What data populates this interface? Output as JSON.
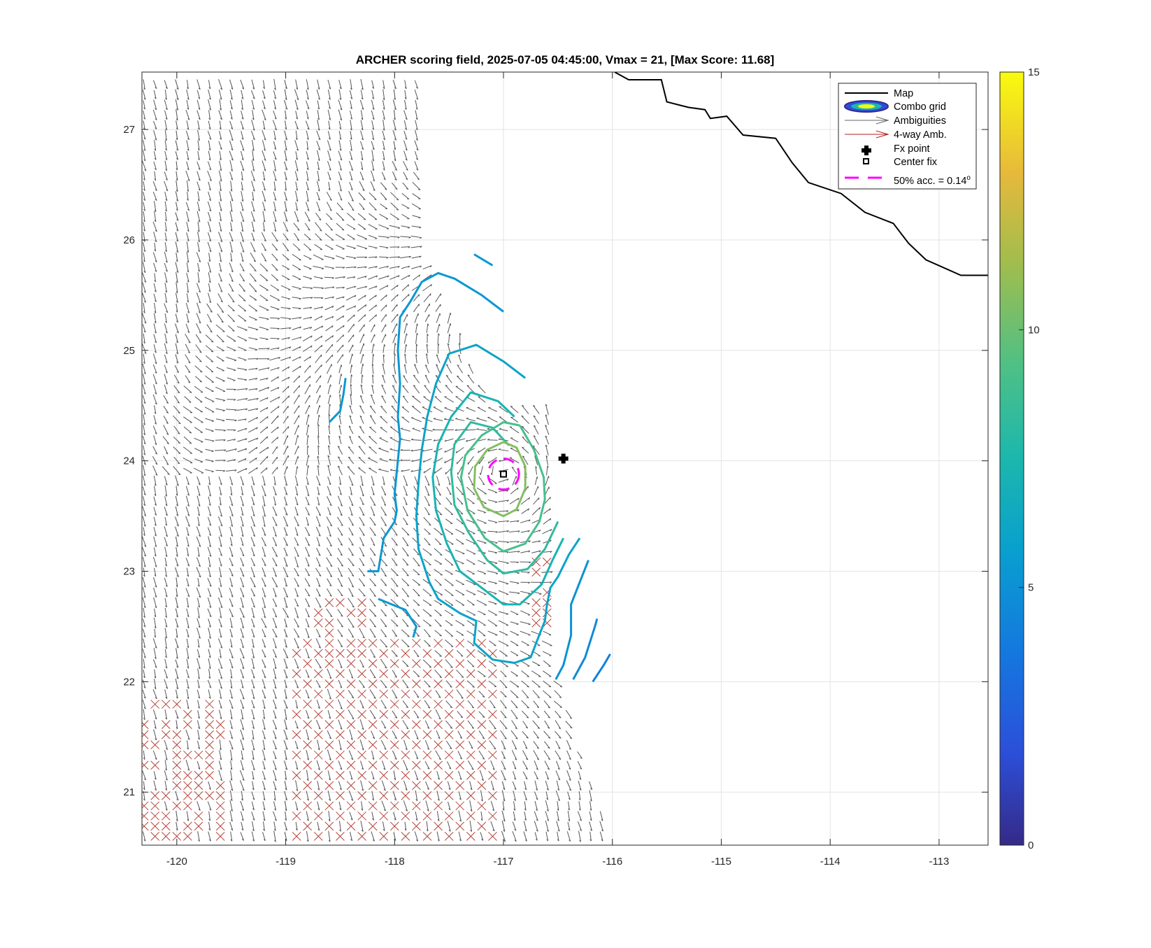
{
  "chart_data": {
    "type": "contour",
    "title": "ARCHER scoring field, 2025-07-05 04:45:00, Vmax = 21, [Max Score: 11.68]",
    "xlabel": "",
    "ylabel": "",
    "xlim": [
      -120.32,
      -112.55
    ],
    "ylim": [
      20.52,
      27.52
    ],
    "x_ticks": [
      "-120",
      "-119",
      "-118",
      "-117",
      "-116",
      "-115",
      "-114",
      "-113"
    ],
    "y_ticks": [
      "21",
      "22",
      "23",
      "24",
      "25",
      "26",
      "27"
    ],
    "grid": true,
    "colorbar": {
      "range": [
        0,
        15
      ],
      "ticks": [
        "0",
        "5",
        "10",
        "15"
      ],
      "colormap": "parula"
    },
    "legend": {
      "placement": "top-right",
      "entries": [
        "Map",
        "Combo grid",
        "Ambiguities",
        "4-way Amb.",
        "Fx point",
        "Center fix",
        "50% acc. = 0.14"
      ],
      "degree_symbol": "o"
    },
    "fx_point": {
      "lon": -116.45,
      "lat": 24.02
    },
    "center_fix": {
      "lon": -117.0,
      "lat": 23.88
    },
    "acc_circle_radius_deg": 0.14,
    "max_score": 11.68,
    "contour_levels": [
      {
        "level": 4.2,
        "segments": [
          [
            [
              -116.18,
              22.0
            ],
            [
              -116.08,
              22.15
            ],
            [
              -116.02,
              22.25
            ]
          ]
        ]
      },
      {
        "level": 4.6,
        "segments": [
          [
            [
              -116.36,
              22.02
            ],
            [
              -116.25,
              22.22
            ],
            [
              -116.16,
              22.5
            ],
            [
              -116.14,
              22.57
            ]
          ]
        ]
      },
      {
        "level": 5.0,
        "segments": [
          [
            [
              -116.52,
              22.02
            ],
            [
              -116.45,
              22.15
            ],
            [
              -116.38,
              22.42
            ],
            [
              -116.38,
              22.7
            ],
            [
              -116.3,
              22.9
            ],
            [
              -116.22,
              23.1
            ]
          ]
        ]
      },
      {
        "level": 5.3,
        "segments": [
          [
            [
              -117.27,
              25.87
            ],
            [
              -117.1,
              25.77
            ]
          ],
          [
            [
              -118.6,
              24.35
            ],
            [
              -118.5,
              24.45
            ],
            [
              -118.47,
              24.6
            ],
            [
              -118.45,
              24.75
            ]
          ],
          [
            [
              -118.25,
              23.0
            ],
            [
              -118.15,
              23.0
            ],
            [
              -118.1,
              23.3
            ],
            [
              -118.0,
              23.45
            ],
            [
              -117.98,
              23.55
            ],
            [
              -118.0,
              23.7
            ],
            [
              -117.98,
              23.9
            ],
            [
              -117.95,
              24.2
            ],
            [
              -117.97,
              24.4
            ],
            [
              -117.95,
              24.7
            ],
            [
              -117.97,
              25.0
            ],
            [
              -117.95,
              25.3
            ],
            [
              -117.85,
              25.45
            ],
            [
              -117.75,
              25.62
            ],
            [
              -117.6,
              25.7
            ],
            [
              -117.45,
              25.65
            ],
            [
              -117.2,
              25.5
            ],
            [
              -117.0,
              25.35
            ]
          ],
          [
            [
              -118.15,
              22.75
            ],
            [
              -117.9,
              22.65
            ],
            [
              -117.8,
              22.5
            ],
            [
              -117.83,
              22.4
            ]
          ]
        ]
      },
      {
        "level": 6.0,
        "segments": [
          [
            [
              -116.8,
              24.75
            ],
            [
              -117.0,
              24.9
            ],
            [
              -117.25,
              25.05
            ],
            [
              -117.5,
              24.97
            ],
            [
              -117.62,
              24.7
            ],
            [
              -117.7,
              24.4
            ],
            [
              -117.75,
              24.1
            ],
            [
              -117.78,
              23.8
            ],
            [
              -117.8,
              23.5
            ],
            [
              -117.78,
              23.2
            ],
            [
              -117.68,
              22.9
            ],
            [
              -117.6,
              22.75
            ],
            [
              -117.4,
              22.62
            ],
            [
              -117.25,
              22.55
            ],
            [
              -117.27,
              22.35
            ],
            [
              -117.1,
              22.2
            ],
            [
              -116.9,
              22.17
            ],
            [
              -116.75,
              22.22
            ],
            [
              -116.68,
              22.4
            ],
            [
              -116.62,
              22.55
            ],
            [
              -116.6,
              22.7
            ],
            [
              -116.57,
              22.85
            ],
            [
              -116.5,
              22.95
            ],
            [
              -116.4,
              23.15
            ],
            [
              -116.3,
              23.3
            ]
          ]
        ]
      },
      {
        "level": 7.2,
        "segments": [
          [
            [
              -116.9,
              24.4
            ],
            [
              -117.05,
              24.54
            ],
            [
              -117.3,
              24.62
            ],
            [
              -117.48,
              24.4
            ],
            [
              -117.6,
              24.15
            ],
            [
              -117.65,
              23.85
            ],
            [
              -117.62,
              23.55
            ],
            [
              -117.52,
              23.25
            ],
            [
              -117.4,
              23.0
            ],
            [
              -117.2,
              22.85
            ],
            [
              -117.0,
              22.7
            ],
            [
              -116.85,
              22.7
            ],
            [
              -116.65,
              22.88
            ],
            [
              -116.55,
              23.1
            ],
            [
              -116.45,
              23.3
            ]
          ]
        ]
      },
      {
        "level": 8.2,
        "segments": [
          [
            [
              -116.95,
              24.14
            ],
            [
              -117.1,
              24.3
            ],
            [
              -117.3,
              24.35
            ],
            [
              -117.45,
              24.15
            ],
            [
              -117.48,
              23.9
            ],
            [
              -117.45,
              23.6
            ],
            [
              -117.32,
              23.35
            ],
            [
              -117.15,
              23.1
            ],
            [
              -117.0,
              22.98
            ],
            [
              -116.78,
              23.02
            ],
            [
              -116.62,
              23.2
            ],
            [
              -116.5,
              23.45
            ]
          ]
        ]
      },
      {
        "level": 9.0,
        "segments": [
          [
            [
              -116.85,
              24.32
            ],
            [
              -117.0,
              24.35
            ],
            [
              -117.2,
              24.23
            ],
            [
              -117.35,
              24.05
            ],
            [
              -117.39,
              23.85
            ],
            [
              -117.33,
              23.55
            ],
            [
              -117.17,
              23.3
            ],
            [
              -117.0,
              23.18
            ],
            [
              -116.8,
              23.25
            ],
            [
              -116.67,
              23.45
            ],
            [
              -116.62,
              23.65
            ],
            [
              -116.63,
              23.85
            ],
            [
              -116.72,
              24.1
            ],
            [
              -116.85,
              24.32
            ]
          ]
        ]
      },
      {
        "level": 10.6,
        "segments": [
          [
            [
              -117.0,
              24.17
            ],
            [
              -117.15,
              24.1
            ],
            [
              -117.26,
              23.95
            ],
            [
              -117.27,
              23.75
            ],
            [
              -117.18,
              23.58
            ],
            [
              -117.0,
              23.5
            ],
            [
              -116.88,
              23.56
            ],
            [
              -116.8,
              23.75
            ],
            [
              -116.8,
              23.95
            ],
            [
              -116.88,
              24.12
            ],
            [
              -117.0,
              24.17
            ]
          ]
        ]
      }
    ]
  },
  "map_coastline": [
    [
      -115.98,
      27.52
    ],
    [
      -115.85,
      27.45
    ],
    [
      -115.55,
      27.45
    ],
    [
      -115.5,
      27.25
    ],
    [
      -115.38,
      27.22
    ],
    [
      -115.3,
      27.2
    ],
    [
      -115.15,
      27.18
    ],
    [
      -115.1,
      27.1
    ],
    [
      -114.95,
      27.12
    ],
    [
      -114.8,
      26.95
    ],
    [
      -114.5,
      26.92
    ],
    [
      -114.35,
      26.7
    ],
    [
      -114.2,
      26.52
    ],
    [
      -113.9,
      26.42
    ],
    [
      -113.68,
      26.25
    ],
    [
      -113.42,
      26.15
    ],
    [
      -113.28,
      25.97
    ],
    [
      -113.12,
      25.82
    ],
    [
      -112.8,
      25.68
    ],
    [
      -112.55,
      25.68
    ]
  ]
}
